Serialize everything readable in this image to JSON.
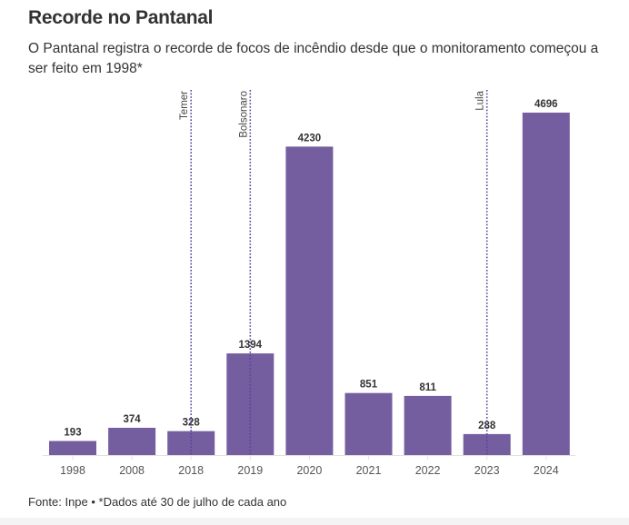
{
  "header": {
    "title": "Recorde no Pantanal",
    "subtitle": "O Pantanal registra o recorde de focos de incêndio desde que o monitoramento começou a ser feito em 1998*"
  },
  "footer": {
    "text": "Fonte: Inpe • *Dados até 30 de julho de cada ano"
  },
  "colors": {
    "bar": "#745e9f",
    "marker": "#5b3fa0",
    "axis": "#e0e0e0"
  },
  "chart_data": {
    "type": "bar",
    "title": "Recorde no Pantanal",
    "xlabel": "",
    "ylabel": "",
    "categories": [
      "1998",
      "2008",
      "2018",
      "2019",
      "2020",
      "2021",
      "2022",
      "2023",
      "2024"
    ],
    "values": [
      193,
      374,
      328,
      1394,
      4230,
      851,
      811,
      288,
      4696
    ],
    "ylim": [
      0,
      4696
    ],
    "grid": false,
    "legend": "none",
    "annotations": [
      {
        "label": "Temer",
        "category": "2018"
      },
      {
        "label": "Bolsonaro",
        "category": "2019"
      },
      {
        "label": "Lula",
        "category": "2023"
      }
    ]
  }
}
